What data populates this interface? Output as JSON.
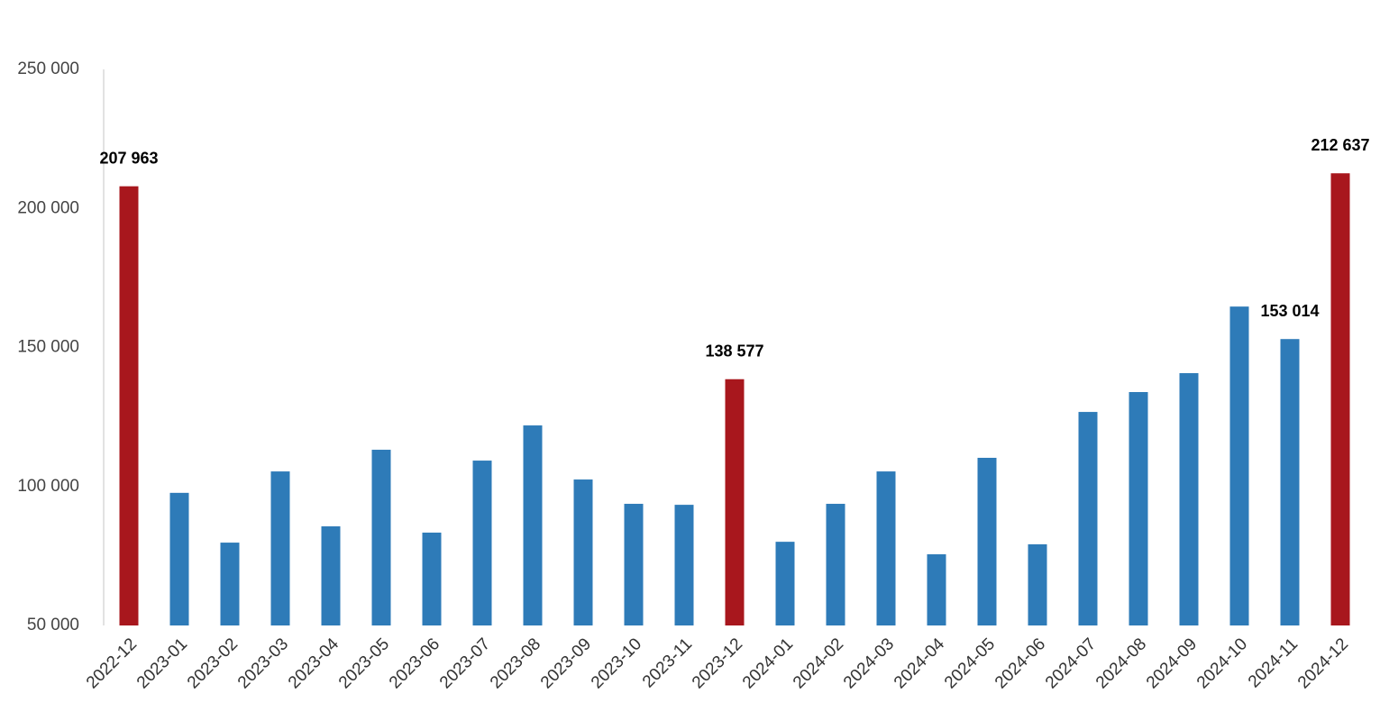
{
  "chart_data": {
    "type": "bar",
    "categories": [
      "2022-12",
      "2023-01",
      "2023-02",
      "2023-03",
      "2023-04",
      "2023-05",
      "2023-06",
      "2023-07",
      "2023-08",
      "2023-09",
      "2023-10",
      "2023-11",
      "2023-12",
      "2024-01",
      "2024-02",
      "2024-03",
      "2024-04",
      "2024-05",
      "2024-06",
      "2024-07",
      "2024-08",
      "2024-09",
      "2024-10",
      "2024-11",
      "2024-12"
    ],
    "values": [
      207963,
      97700,
      79800,
      105400,
      85650,
      113200,
      83400,
      109300,
      121950,
      102500,
      93750,
      93400,
      138577,
      80100,
      93750,
      105400,
      75600,
      110300,
      79200,
      126800,
      133950,
      140750,
      164700,
      153014,
      212637
    ],
    "value_labels": [
      "207 963",
      null,
      null,
      null,
      null,
      null,
      null,
      null,
      null,
      null,
      null,
      null,
      "138 577",
      null,
      null,
      null,
      null,
      null,
      null,
      null,
      null,
      null,
      null,
      "153 014",
      "212 637"
    ],
    "colors": [
      "#a8171d",
      "#2e7bb8",
      "#2e7bb8",
      "#2e7bb8",
      "#2e7bb8",
      "#2e7bb8",
      "#2e7bb8",
      "#2e7bb8",
      "#2e7bb8",
      "#2e7bb8",
      "#2e7bb8",
      "#2e7bb8",
      "#a8171d",
      "#2e7bb8",
      "#2e7bb8",
      "#2e7bb8",
      "#2e7bb8",
      "#2e7bb8",
      "#2e7bb8",
      "#2e7bb8",
      "#2e7bb8",
      "#2e7bb8",
      "#2e7bb8",
      "#2e7bb8",
      "#a8171d"
    ],
    "ylim": [
      50000,
      250000
    ],
    "yticks": [
      {
        "value": 50000,
        "label": "50 000"
      },
      {
        "value": 100000,
        "label": "100 000"
      },
      {
        "value": 150000,
        "label": "150 000"
      },
      {
        "value": 200000,
        "label": "200 000"
      },
      {
        "value": 250000,
        "label": "250 000"
      }
    ],
    "grid": false
  }
}
